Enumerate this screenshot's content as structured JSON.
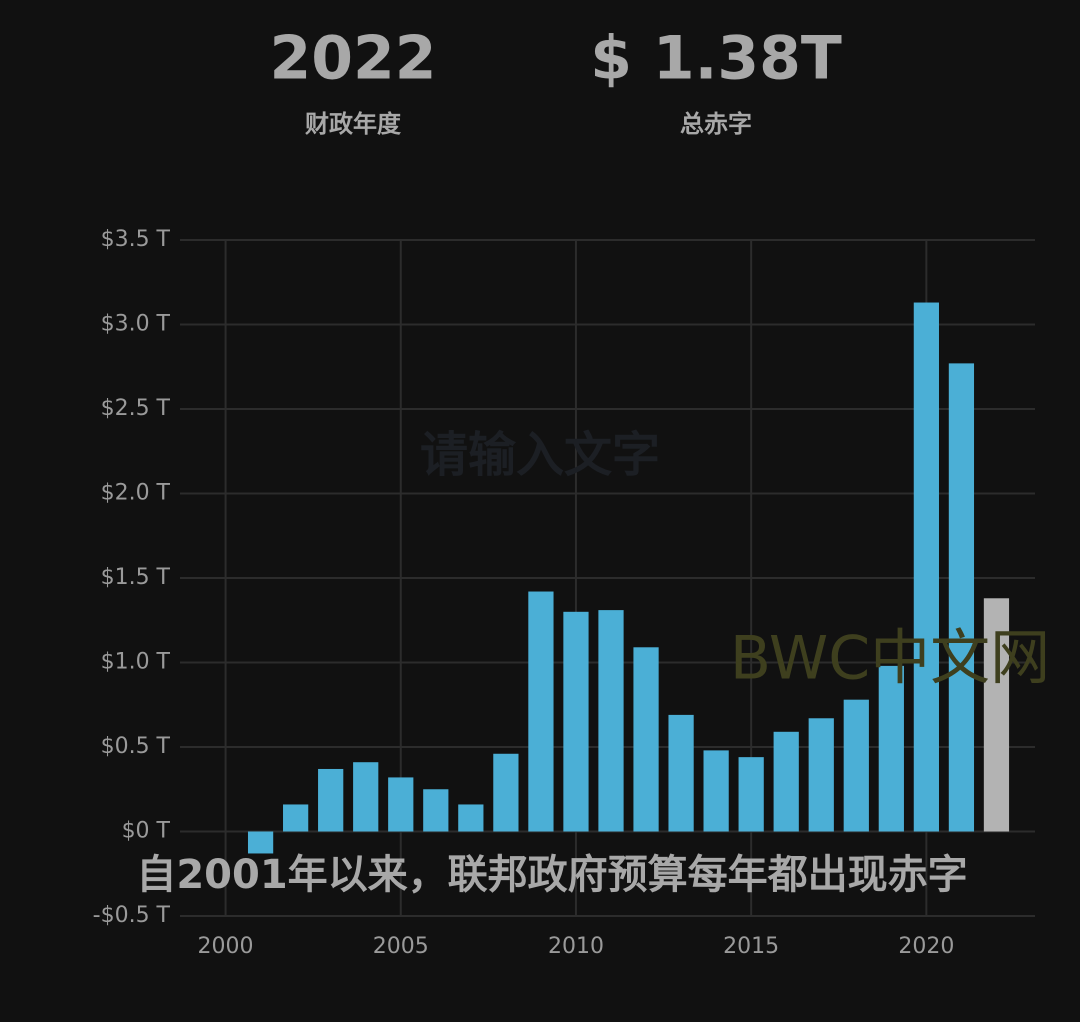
{
  "header": {
    "year": "2022",
    "year_label": "财政年度",
    "total": "$ 1.38T",
    "total_label": "总赤字"
  },
  "chart_data": {
    "type": "bar",
    "caption": "自2001年以来，联邦政府预算每年都出现赤字",
    "watermarks": [
      "请输入文字",
      "BWC中文网"
    ],
    "x": [
      2001,
      2002,
      2003,
      2004,
      2005,
      2006,
      2007,
      2008,
      2009,
      2010,
      2011,
      2012,
      2013,
      2014,
      2015,
      2016,
      2017,
      2018,
      2019,
      2020,
      2021,
      2022
    ],
    "values": [
      -0.13,
      0.16,
      0.37,
      0.41,
      0.32,
      0.25,
      0.16,
      0.46,
      1.42,
      1.3,
      1.31,
      1.09,
      0.69,
      0.48,
      0.44,
      0.59,
      0.67,
      0.78,
      0.98,
      3.13,
      2.77,
      1.38
    ],
    "colors": [
      "#4bafd6",
      "#4bafd6",
      "#4bafd6",
      "#4bafd6",
      "#4bafd6",
      "#4bafd6",
      "#4bafd6",
      "#4bafd6",
      "#4bafd6",
      "#4bafd6",
      "#4bafd6",
      "#4bafd6",
      "#4bafd6",
      "#4bafd6",
      "#4bafd6",
      "#4bafd6",
      "#4bafd6",
      "#4bafd6",
      "#4bafd6",
      "#4bafd6",
      "#4bafd6",
      "#b3b3b3"
    ],
    "xlim": [
      1998.7,
      2023.1
    ],
    "xticks": [
      2000,
      2005,
      2010,
      2015,
      2020
    ],
    "ylim": [
      -0.5,
      3.5
    ],
    "yticks": [
      {
        "value": -0.5,
        "label": "-$0.5 T"
      },
      {
        "value": 0,
        "label": "$0 T"
      },
      {
        "value": 0.5,
        "label": "$0.5 T"
      },
      {
        "value": 1.0,
        "label": "$1.0 T"
      },
      {
        "value": 1.5,
        "label": "$1.5 T"
      },
      {
        "value": 2.0,
        "label": "$2.0 T"
      },
      {
        "value": 2.5,
        "label": "$2.5 T"
      },
      {
        "value": 3.0,
        "label": "$3.0 T"
      },
      {
        "value": 3.5,
        "label": "$3.5 T"
      }
    ],
    "grid": true
  }
}
